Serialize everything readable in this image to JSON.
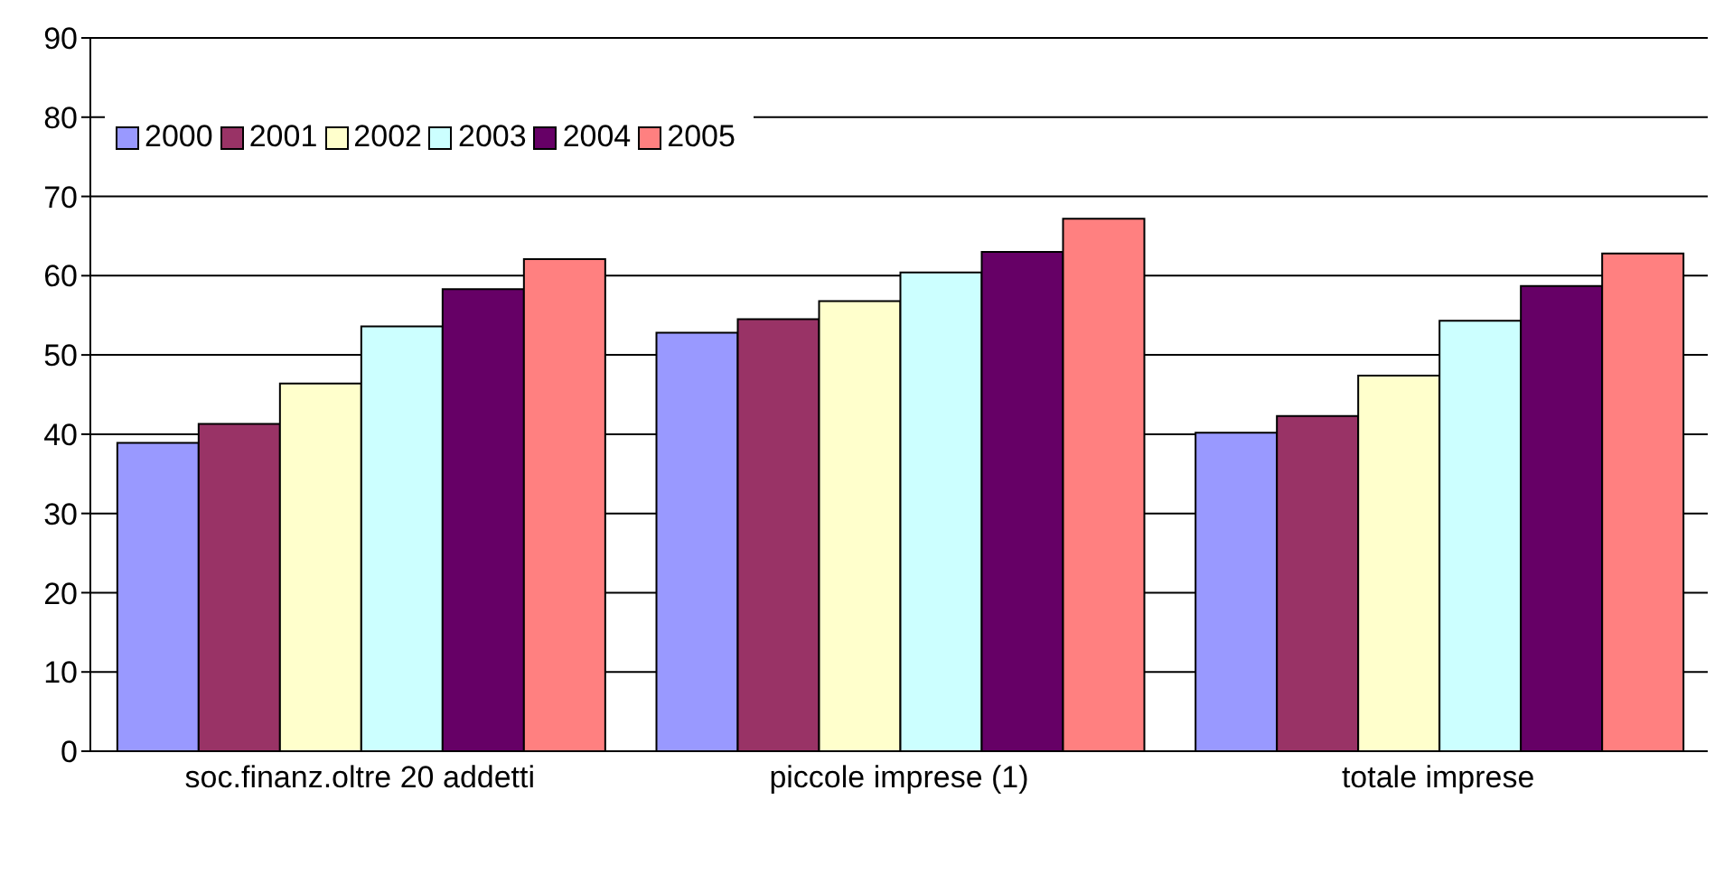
{
  "chart_data": {
    "type": "bar",
    "categories": [
      "soc.finanz.oltre 20 addetti",
      "piccole imprese (1)",
      "totale imprese"
    ],
    "series": [
      {
        "name": "2000",
        "color": "#9999ff",
        "values": [
          38.9,
          52.8,
          40.2
        ]
      },
      {
        "name": "2001",
        "color": "#993366",
        "values": [
          41.3,
          54.5,
          42.3
        ]
      },
      {
        "name": "2002",
        "color": "#ffffcc",
        "values": [
          46.4,
          56.8,
          47.4
        ]
      },
      {
        "name": "2003",
        "color": "#ccffff",
        "values": [
          53.6,
          60.4,
          54.3
        ]
      },
      {
        "name": "2004",
        "color": "#660066",
        "values": [
          58.3,
          63.0,
          58.7
        ]
      },
      {
        "name": "2005",
        "color": "#ff8080",
        "values": [
          62.1,
          67.2,
          62.8
        ]
      }
    ],
    "ylim": [
      0,
      90
    ],
    "yticks": [
      0,
      10,
      20,
      30,
      40,
      50,
      60,
      70,
      80,
      90
    ],
    "grid": "y",
    "legend": "top left"
  }
}
